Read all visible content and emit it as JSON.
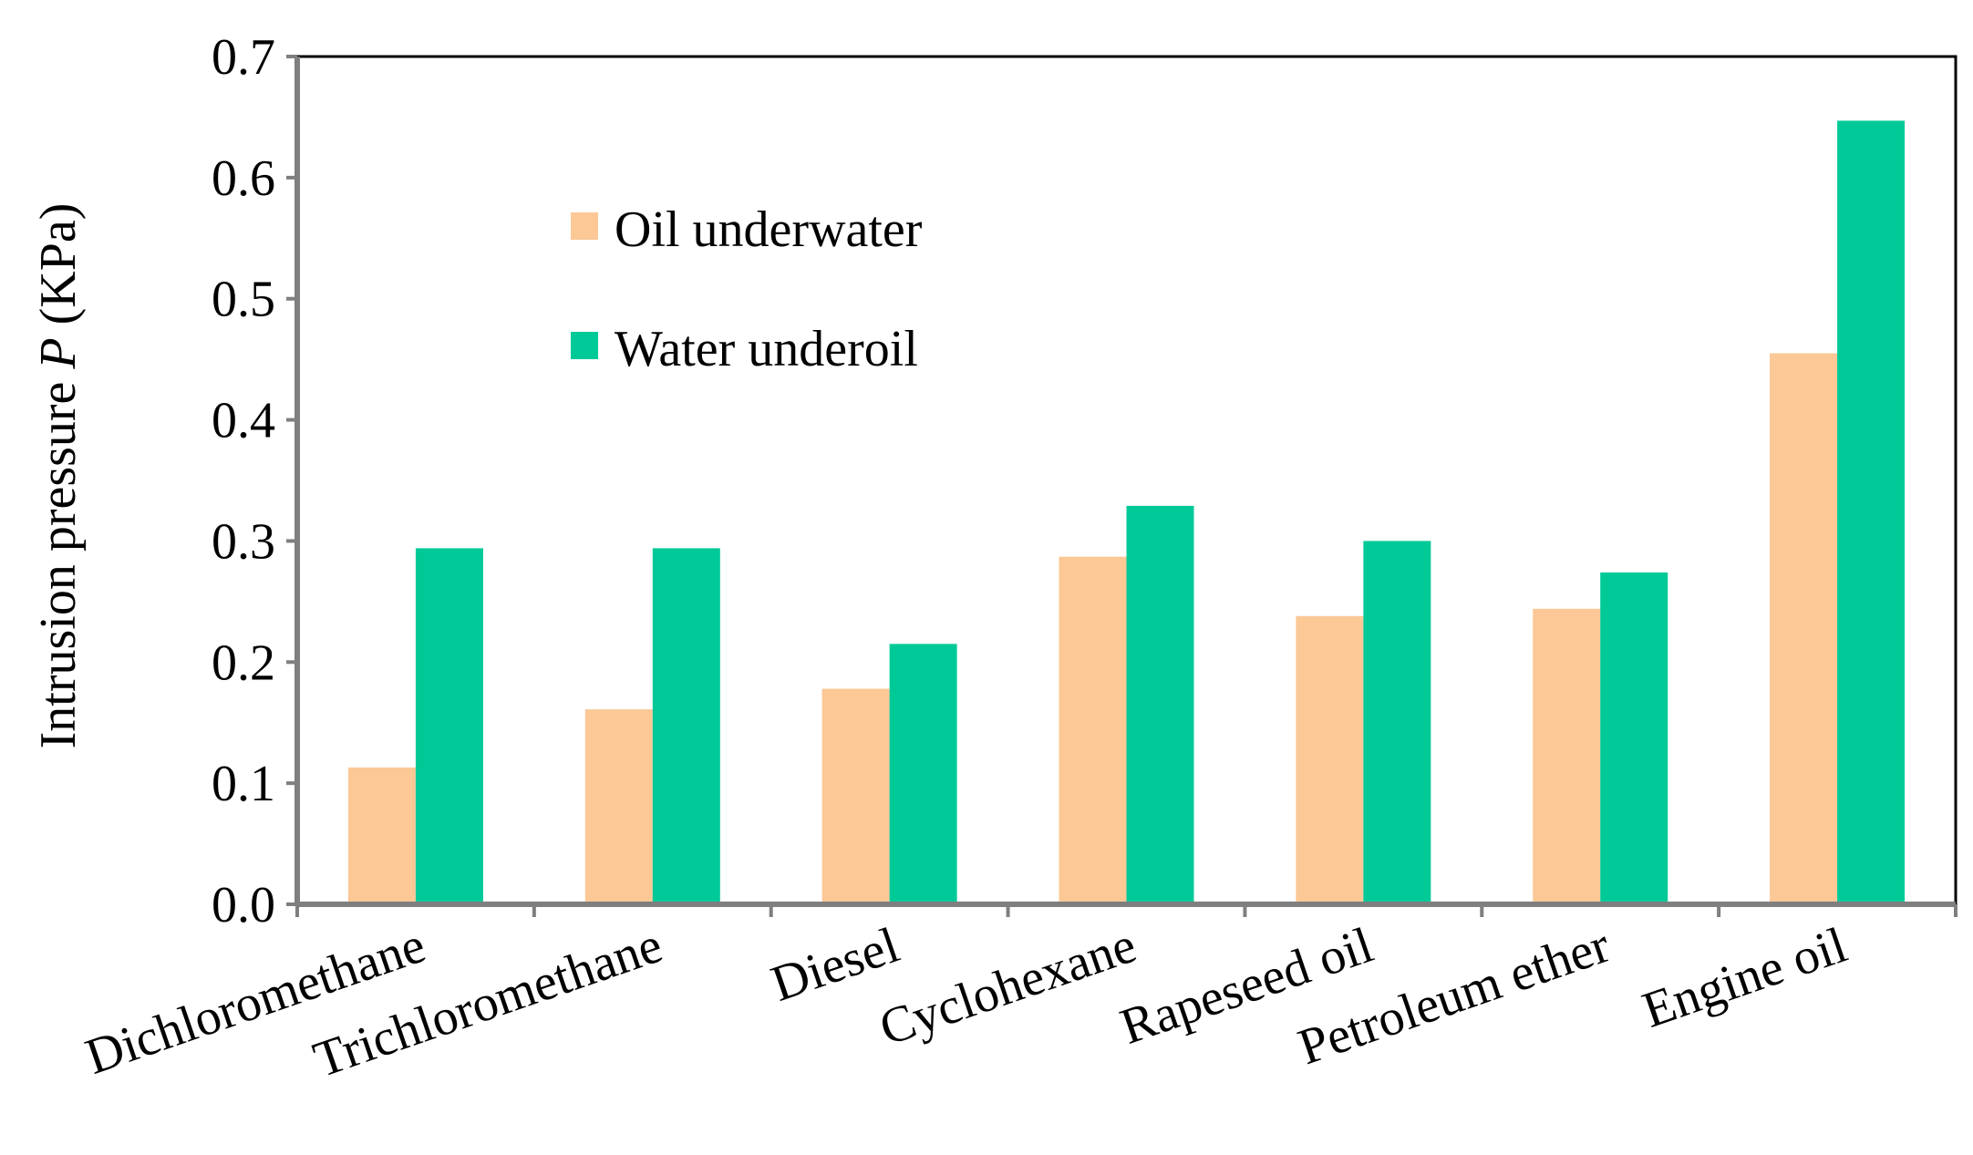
{
  "chart_data": {
    "type": "bar",
    "title": "",
    "xlabel": "",
    "ylabel": "Intrusion pressure",
    "ylabel_symbol": "P",
    "ylabel_unit": "(KPa)",
    "ylim": [
      0,
      0.7
    ],
    "y_ticks": [
      "0.0",
      "0.1",
      "0.2",
      "0.3",
      "0.4",
      "0.5",
      "0.6",
      "0.7"
    ],
    "categories": [
      "Dichloromethane",
      "Trichloromethane",
      "Diesel",
      "Cyclohexane",
      "Rapeseed oil",
      "Petroleum ether",
      "Engine oil"
    ],
    "series": [
      {
        "name": "Oil underwater",
        "color": "#FBC896",
        "values": [
          0.113,
          0.161,
          0.178,
          0.287,
          0.238,
          0.244,
          0.455
        ]
      },
      {
        "name": "Water underoil",
        "color": "#00C998",
        "values": [
          0.294,
          0.294,
          0.215,
          0.329,
          0.3,
          0.274,
          0.647
        ]
      }
    ],
    "legend_position": "upper-left inside plot",
    "grid": false
  }
}
